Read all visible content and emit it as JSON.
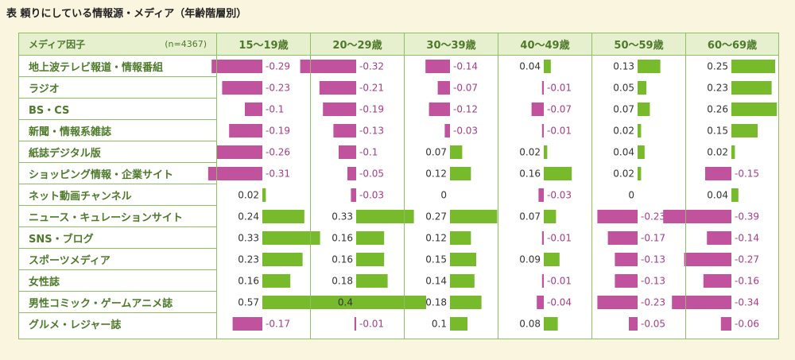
{
  "caption": "表 頼りにしている情報源・メディア（年齢階層別）",
  "header": {
    "media_label": "メディア因子",
    "n_label": "(n=4367)"
  },
  "colors": {
    "positive": "#77bb2c",
    "negative": "#c0529e",
    "border": "#8cc063",
    "header_bg": "#e6f0cf",
    "page_bg": "#f9f5de"
  },
  "chart_data": {
    "type": "bar",
    "title": "表 頼りにしている情報源・メディア（年齢階層別）",
    "groups": [
      "15～19歳",
      "20～29歳",
      "30～39歳",
      "40～49歳",
      "50～59歳",
      "60～69歳"
    ],
    "categories": [
      "地上波テレビ報道・情報番組",
      "ラジオ",
      "BS・CS",
      "新聞・情報系雑誌",
      "紙誌デジタル版",
      "ショッピング情報・企業サイト",
      "ネット動画チャンネル",
      "ニュース・キュレーションサイト",
      "SNS・ブログ",
      "スポーツメディア",
      "女性誌",
      "男性コミック・ゲームアニメ誌",
      "グルメ・レジャー誌"
    ],
    "series": [
      {
        "name": "15～19歳",
        "values": [
          -0.29,
          -0.23,
          -0.1,
          -0.19,
          -0.26,
          -0.31,
          0.02,
          0.24,
          0.33,
          0.23,
          0.16,
          0.57,
          -0.17
        ]
      },
      {
        "name": "20～29歳",
        "values": [
          -0.32,
          -0.21,
          -0.19,
          -0.13,
          -0.1,
          -0.05,
          -0.03,
          0.33,
          0.16,
          0.16,
          0.18,
          0.4,
          -0.01
        ]
      },
      {
        "name": "30～39歳",
        "values": [
          -0.14,
          -0.07,
          -0.12,
          -0.03,
          0.07,
          0.12,
          0,
          0.27,
          0.12,
          0.15,
          0.14,
          0.18,
          0.1
        ]
      },
      {
        "name": "40～49歳",
        "values": [
          0.04,
          -0.01,
          -0.07,
          -0.01,
          0.02,
          0.16,
          -0.03,
          0.07,
          -0.01,
          0.09,
          -0.01,
          -0.04,
          0.08
        ]
      },
      {
        "name": "50～59歳",
        "values": [
          0.13,
          0.05,
          0.07,
          0.02,
          0.04,
          0.02,
          0,
          -0.23,
          -0.17,
          -0.13,
          -0.13,
          -0.23,
          -0.05
        ]
      },
      {
        "name": "60～69歳",
        "values": [
          0.25,
          0.23,
          0.26,
          0.15,
          0.02,
          -0.15,
          0.04,
          -0.39,
          -0.14,
          -0.27,
          -0.16,
          -0.34,
          -0.06
        ]
      }
    ],
    "grid": true,
    "legend": "none"
  }
}
